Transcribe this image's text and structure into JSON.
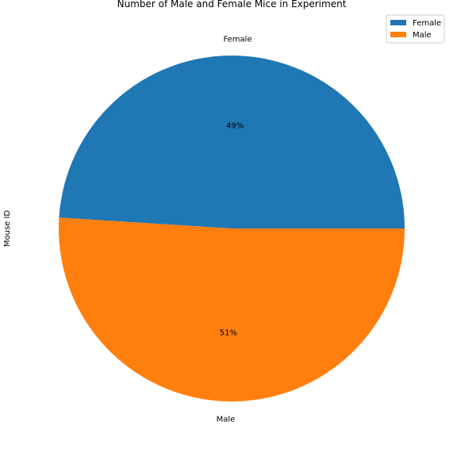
{
  "chart_data": {
    "type": "pie",
    "title": "Number of Male and Female Mice in Experiment",
    "ylabel": "Mouse ID",
    "labels": [
      "Female",
      "Male"
    ],
    "values": [
      49,
      51
    ],
    "pct_labels": [
      "49%",
      "51%"
    ],
    "colors": [
      "#1f77b4",
      "#ff7f0e"
    ],
    "legend": {
      "placement": "top-right",
      "entries": [
        "Female",
        "Male"
      ]
    }
  }
}
